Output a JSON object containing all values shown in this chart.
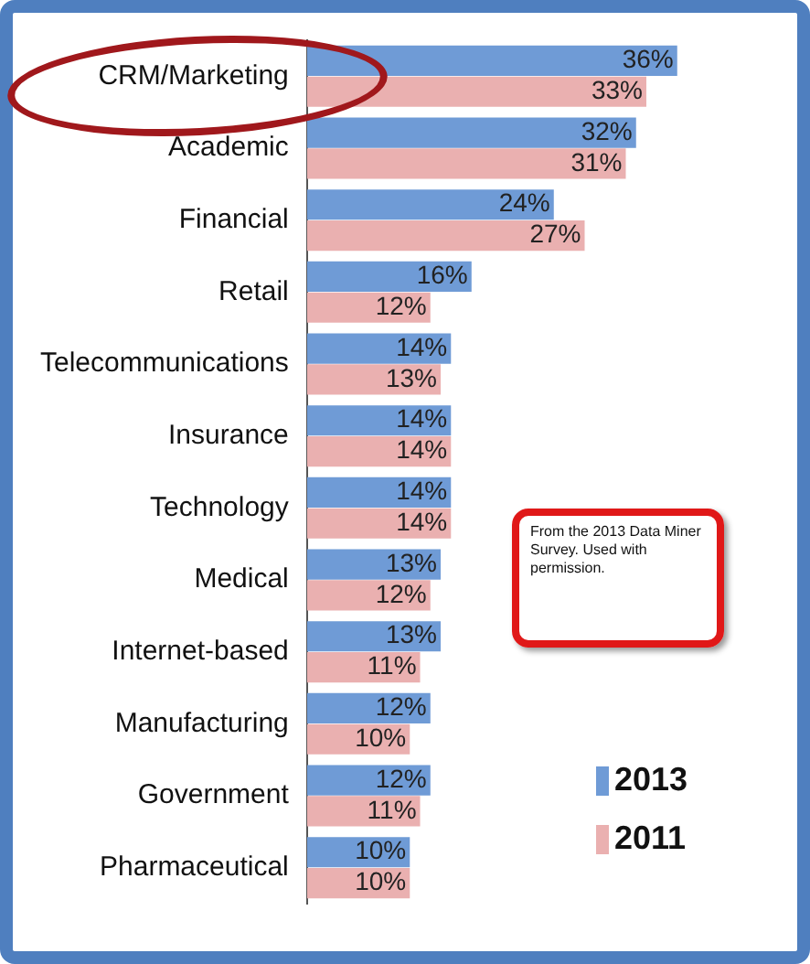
{
  "chart_data": {
    "type": "bar",
    "orientation": "horizontal",
    "categories": [
      "CRM/Marketing",
      "Academic",
      "Financial",
      "Retail",
      "Telecommunications",
      "Insurance",
      "Technology",
      "Medical",
      "Internet-based",
      "Manufacturing",
      "Government",
      "Pharmaceutical"
    ],
    "series": [
      {
        "name": "2013",
        "color": "#6f9bd6",
        "values": [
          36,
          32,
          24,
          16,
          14,
          14,
          14,
          13,
          13,
          12,
          12,
          10
        ],
        "value_labels": [
          "36%",
          "32%",
          "24%",
          "16%",
          "14%",
          "14%",
          "14%",
          "13%",
          "13%",
          "12%",
          "12%",
          "10%"
        ]
      },
      {
        "name": "2011",
        "color": "#eab0b0",
        "values": [
          33,
          31,
          27,
          12,
          13,
          14,
          14,
          12,
          11,
          10,
          11,
          10
        ],
        "value_labels": [
          "33%",
          "31%",
          "27%",
          "12%",
          "13%",
          "14%",
          "14%",
          "12%",
          "11%",
          "10%",
          "11%",
          "10%"
        ]
      }
    ],
    "legend": "bottom right",
    "annotations": [
      "From the 2013 Data Miner Survey. Used with permission."
    ]
  }
}
